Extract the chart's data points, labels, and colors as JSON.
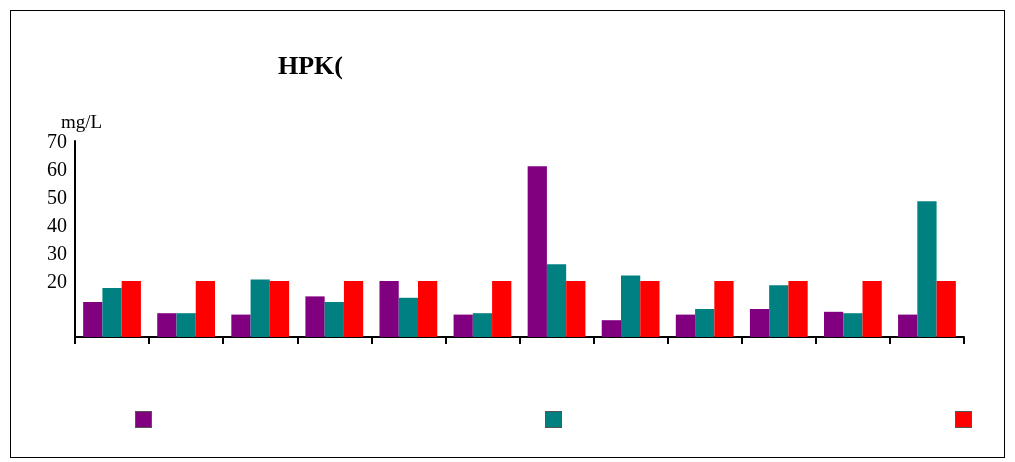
{
  "chart_data": {
    "type": "bar",
    "title": "HPK(",
    "ylabel": "mg/L",
    "categories": [
      null,
      null,
      null,
      null,
      null,
      null,
      null,
      null,
      null,
      null,
      null,
      null
    ],
    "series": [
      {
        "color": "#800080",
        "values": [
          12.5,
          8.5,
          8,
          14.5,
          20,
          8,
          61,
          6,
          8,
          10,
          9,
          8
        ]
      },
      {
        "color": "#008080",
        "values": [
          17.5,
          8.5,
          20.5,
          12.5,
          14,
          8.5,
          26,
          22,
          10,
          18.5,
          8.5,
          48.5
        ]
      },
      {
        "color": "#ff0000",
        "values": [
          20,
          20,
          20,
          20,
          20,
          20,
          20,
          20,
          20,
          20,
          20,
          20
        ]
      }
    ],
    "ylim": [
      0,
      70
    ],
    "yticks": [
      20,
      30,
      40,
      50,
      60,
      70
    ],
    "grid": false
  }
}
